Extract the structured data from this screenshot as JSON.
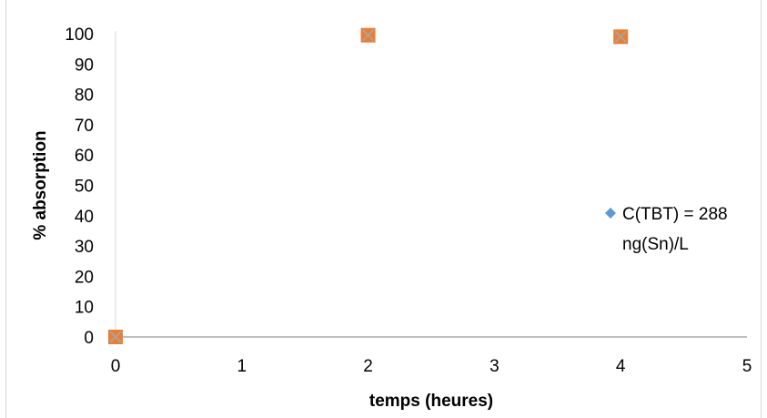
{
  "chart_data": {
    "type": "scatter",
    "xlabel": "temps (heures)",
    "ylabel": "% absorption",
    "xlim": [
      0,
      5
    ],
    "ylim": [
      0,
      100
    ],
    "xticks": [
      "0",
      "1",
      "2",
      "3",
      "4",
      "5"
    ],
    "yticks": [
      "0",
      "10",
      "20",
      "30",
      "40",
      "50",
      "60",
      "70",
      "80",
      "90",
      "100"
    ],
    "grid": false,
    "legend_position": "right",
    "series": [
      {
        "name": "C(TBT) = 288 ng(Sn)/L",
        "legend_lines": [
          "C(TBT) = 288",
          "ng(Sn)/L"
        ],
        "marker": "diamond",
        "color": "#5b9bd5",
        "points": [
          [
            0,
            0
          ],
          [
            2,
            99.5
          ],
          [
            4,
            99
          ]
        ]
      },
      {
        "marker": "square",
        "color": "#ed7d31",
        "points": [
          [
            0,
            0
          ],
          [
            2,
            99.5
          ],
          [
            4,
            99
          ]
        ]
      },
      {
        "marker": "x",
        "color": "#a5a5a5",
        "points": [
          [
            0,
            0
          ],
          [
            2,
            99.5
          ],
          [
            4,
            99
          ]
        ]
      }
    ]
  }
}
